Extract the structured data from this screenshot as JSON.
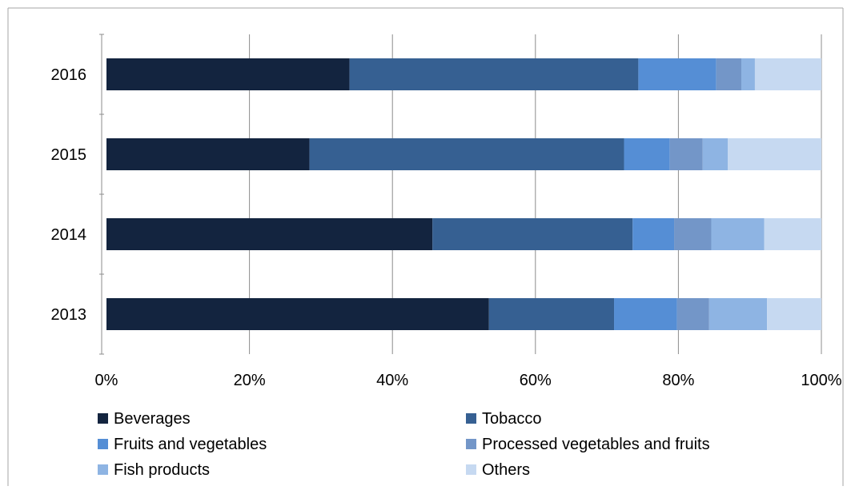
{
  "chart_data": {
    "type": "bar",
    "orientation": "horizontal",
    "stacked": "percent",
    "categories": [
      "2013",
      "2014",
      "2015",
      "2016"
    ],
    "series": [
      {
        "name": "Beverages",
        "color": "#13243f",
        "values": [
          53.5,
          45.6,
          28.4,
          34.0
        ]
      },
      {
        "name": "Tobacco",
        "color": "#366092",
        "values": [
          17.5,
          28.0,
          44.0,
          40.4
        ]
      },
      {
        "name": "Fruits and vegetables",
        "color": "#558ed5",
        "values": [
          8.8,
          5.8,
          6.4,
          10.9
        ]
      },
      {
        "name": "Processed vegetables and fruits",
        "color": "#7396c8",
        "values": [
          4.5,
          5.2,
          4.6,
          3.5
        ]
      },
      {
        "name": "Fish products",
        "color": "#8eb4e3",
        "values": [
          8.1,
          7.4,
          3.5,
          1.9
        ]
      },
      {
        "name": "Others",
        "color": "#c6d9f1",
        "values": [
          7.6,
          8.0,
          13.1,
          9.3
        ]
      }
    ],
    "x_tick_labels": [
      "0%",
      "20%",
      "40%",
      "60%",
      "80%",
      "100%"
    ],
    "xlim": [
      0,
      100
    ],
    "grid": "vertical",
    "legend_position": "bottom"
  }
}
